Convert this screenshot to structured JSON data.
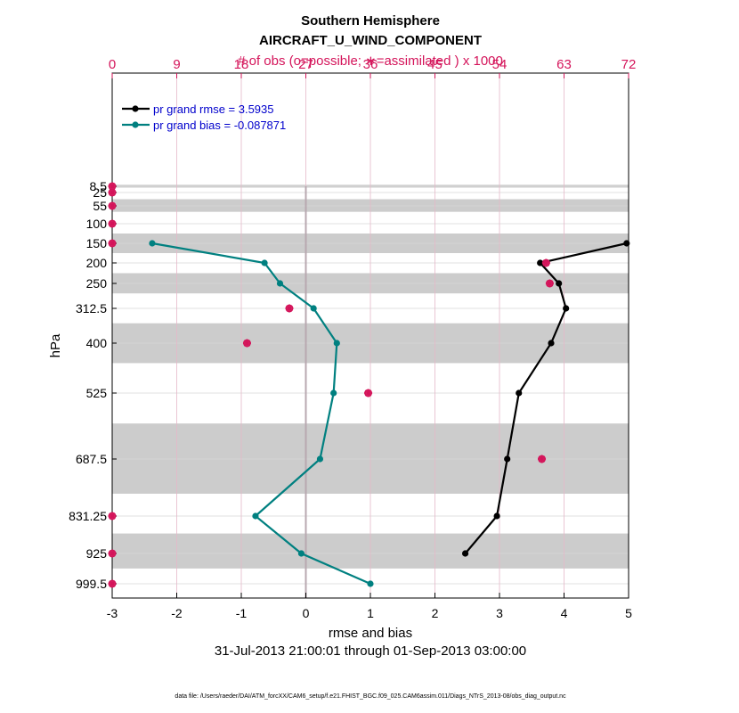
{
  "chart_data": {
    "type": "line",
    "title": "Southern Hemisphere",
    "subtitle": "AIRCRAFT_U_WIND_COMPONENT",
    "top_axis_label": "# of obs (o=possible; ∗=assimilated ) x 1000",
    "top_ticks": [
      "0",
      "9",
      "18",
      "27",
      "36",
      "45",
      "54",
      "63",
      "72"
    ],
    "top_range": [
      0,
      72
    ],
    "xlabel": "rmse and bias",
    "ylabel": "hPa",
    "date_range": "31-Jul-2013 21:00:01 through 01-Sep-2013 03:00:00",
    "footnote": "data file: /Users/raeder/DAI/ATM_forcXX/CAM6_setup/f.e21.FHIST_BGC.f09_025.CAM6assim.011/Diags_NTrS_2013-08/obs_diag_output.nc",
    "xlim": [
      -3,
      5
    ],
    "x_ticks": [
      "-3",
      "-2",
      "-1",
      "0",
      "1",
      "2",
      "3",
      "4",
      "5"
    ],
    "levels": [
      8.5,
      25,
      55,
      100,
      150,
      200,
      250,
      312.5,
      400,
      525,
      687.5,
      831.25,
      925,
      999.5
    ],
    "level_labels": [
      "8.5",
      "25",
      "55",
      "100",
      "150",
      "200",
      "250",
      "312.5",
      "400",
      "525",
      "687.5",
      "831.25",
      "925",
      "999.5"
    ],
    "shaded_bands": [
      {
        "from": 5,
        "to": 12
      },
      {
        "from": 40,
        "to": 70
      },
      {
        "from": 125,
        "to": 175
      },
      {
        "from": 225,
        "to": 275
      },
      {
        "from": 350,
        "to": 450
      },
      {
        "from": 600,
        "to": 775
      },
      {
        "from": 875,
        "to": 962
      }
    ],
    "series": [
      {
        "name": "rmse",
        "legend": "pr grand rmse = 3.5935",
        "color": "#000000",
        "points": [
          {
            "level": 150,
            "value": 4.97
          },
          {
            "level": 200,
            "value": 3.63
          },
          {
            "level": 250,
            "value": 3.92
          },
          {
            "level": 312.5,
            "value": 4.03
          },
          {
            "level": 400,
            "value": 3.8
          },
          {
            "level": 525,
            "value": 3.3
          },
          {
            "level": 687.5,
            "value": 3.12
          },
          {
            "level": 831.25,
            "value": 2.96
          },
          {
            "level": 925,
            "value": 2.47
          }
        ]
      },
      {
        "name": "bias",
        "legend": "pr grand bias = -0.087871",
        "color": "#008080",
        "points": [
          {
            "level": 150,
            "value": -2.38
          },
          {
            "level": 200,
            "value": -0.64
          },
          {
            "level": 250,
            "value": -0.4
          },
          {
            "level": 312.5,
            "value": 0.12
          },
          {
            "level": 400,
            "value": 0.48
          },
          {
            "level": 525,
            "value": 0.43
          },
          {
            "level": 687.5,
            "value": 0.22
          },
          {
            "level": 831.25,
            "value": -0.78
          },
          {
            "level": 925,
            "value": -0.07
          },
          {
            "level": 999.5,
            "value": 1.0
          }
        ]
      }
    ],
    "obs_counts": {
      "color": "#d4145a",
      "possible": [
        {
          "level": 8.5,
          "count": 0
        },
        {
          "level": 25,
          "count": 0
        },
        {
          "level": 55,
          "count": 0
        },
        {
          "level": 100,
          "count": 0
        },
        {
          "level": 150,
          "count": 0
        },
        {
          "level": 200,
          "count": 60.5
        },
        {
          "level": 250,
          "count": 61
        },
        {
          "level": 312.5,
          "count": 24.7
        },
        {
          "level": 400,
          "count": 18.8
        },
        {
          "level": 525,
          "count": 35.7
        },
        {
          "level": 687.5,
          "count": 59.9
        },
        {
          "level": 831.25,
          "count": 0
        },
        {
          "level": 925,
          "count": 0
        },
        {
          "level": 999.5,
          "count": 0
        }
      ],
      "assimilated": [
        {
          "level": 8.5,
          "count": 0
        },
        {
          "level": 25,
          "count": 0
        },
        {
          "level": 55,
          "count": 0
        },
        {
          "level": 100,
          "count": 0
        },
        {
          "level": 150,
          "count": 0
        },
        {
          "level": 200,
          "count": 60.5
        },
        {
          "level": 250,
          "count": 61
        },
        {
          "level": 312.5,
          "count": 24.7
        },
        {
          "level": 400,
          "count": 18.8
        },
        {
          "level": 525,
          "count": 35.7
        },
        {
          "level": 687.5,
          "count": 59.9
        },
        {
          "level": 831.25,
          "count": 0
        },
        {
          "level": 925,
          "count": 0
        },
        {
          "level": 999.5,
          "count": 0
        }
      ]
    }
  }
}
